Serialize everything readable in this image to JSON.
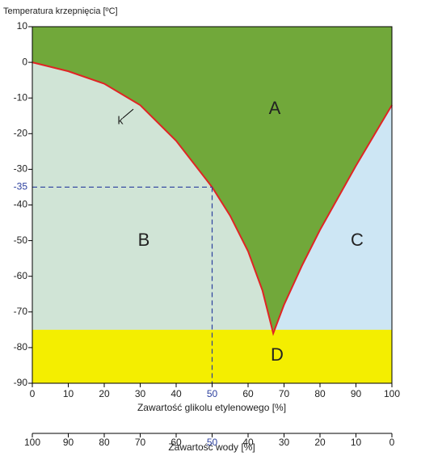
{
  "chart_data": {
    "type": "phase-diagram",
    "title": "Temperatura krzepnięcia [ºC]",
    "x_label": "Zawartość glikolu etylenowego [%]",
    "x2_label": "Zawartość wody [%]",
    "xlim": [
      0,
      100
    ],
    "xticks": [
      0,
      10,
      20,
      30,
      40,
      50,
      60,
      70,
      80,
      90,
      100
    ],
    "x2lim": [
      100,
      0
    ],
    "x2ticks": [
      100,
      90,
      80,
      70,
      60,
      50,
      40,
      30,
      20,
      10,
      0
    ],
    "ylim": [
      -90,
      10
    ],
    "yticks": [
      10,
      0,
      -10,
      -20,
      -30,
      -40,
      -50,
      -60,
      -70,
      -80,
      -90
    ],
    "marker": {
      "x": 50,
      "y": -35,
      "color": "#2b3f9e"
    },
    "series": [
      {
        "name": "k",
        "color": "#e02424",
        "x": [
          0,
          10,
          20,
          30,
          40,
          50,
          55,
          60,
          64,
          67,
          70,
          75,
          80,
          90,
          100
        ],
        "values": [
          0,
          -2.5,
          -6,
          -12,
          -22,
          -35,
          -43,
          -53,
          -64,
          -76,
          -68,
          -57,
          -47,
          -29,
          -12
        ]
      }
    ],
    "regions": [
      {
        "label": "A",
        "color": "#71a83a"
      },
      {
        "label": "B",
        "color": "#d0e4d6"
      },
      {
        "label": "C",
        "color": "#cde6f4"
      },
      {
        "label": "D",
        "color": "#f4ee00",
        "y_top": -75
      }
    ]
  }
}
